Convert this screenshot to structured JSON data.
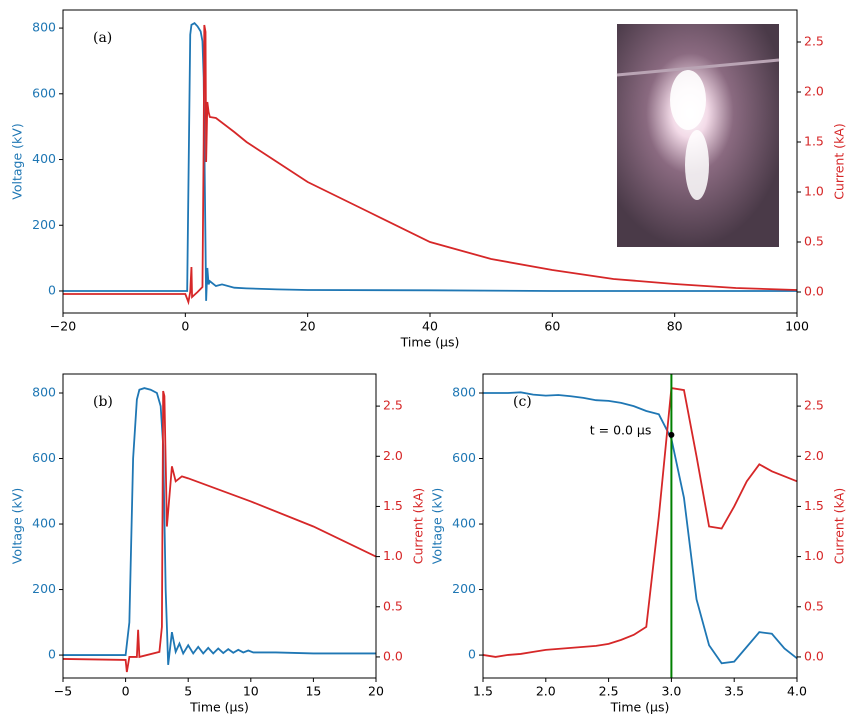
{
  "chart_data": [
    {
      "type": "line",
      "panel_label": "(a)",
      "xlabel": "Time (μs)",
      "ylabel": "Voltage (kV)",
      "y2label": "Current (kA)",
      "xlim": [
        -20,
        100
      ],
      "xticks": [
        {
          "value": -20,
          "label": "−20"
        },
        0,
        20,
        40,
        60,
        80,
        100
      ],
      "ylim": [
        -67,
        855
      ],
      "yticks": [
        0,
        200,
        400,
        600,
        800
      ],
      "y2lim": [
        -0.21,
        2.82
      ],
      "y2ticks": [
        {
          "value": 0,
          "label": "0.0"
        },
        0.5,
        {
          "value": 1,
          "label": "1.0"
        },
        1.5,
        {
          "value": 2,
          "label": "2.0"
        },
        2.5
      ],
      "series": [
        {
          "name": "Voltage",
          "color": "#1f77b4",
          "axis": "y",
          "x": [
            -20,
            0,
            0.3,
            0.8,
            1,
            1.5,
            2,
            2.5,
            2.8,
            3.0,
            3.2,
            3.4,
            3.6,
            3.8,
            4,
            5,
            6,
            8,
            10,
            15,
            20,
            40,
            60,
            100
          ],
          "values": [
            0,
            0,
            0,
            780,
            810,
            815,
            805,
            790,
            760,
            650,
            300,
            -30,
            70,
            20,
            30,
            15,
            20,
            10,
            8,
            5,
            3,
            2,
            0,
            0
          ]
        },
        {
          "name": "Current",
          "color": "#d62728",
          "axis": "y2",
          "x": [
            -20,
            0,
            0.5,
            0.8,
            1.0,
            1.1,
            2,
            2.8,
            3.0,
            3.1,
            3.3,
            3.4,
            3.6,
            3.8,
            4,
            5,
            8,
            10,
            15,
            20,
            30,
            40,
            50,
            60,
            70,
            80,
            90,
            100
          ],
          "values": [
            -0.02,
            -0.02,
            -0.1,
            0.0,
            0.25,
            -0.05,
            0.0,
            0.05,
            1.5,
            2.67,
            2.6,
            1.3,
            1.9,
            1.8,
            1.75,
            1.74,
            1.6,
            1.5,
            1.3,
            1.1,
            0.8,
            0.5,
            0.33,
            0.22,
            0.13,
            0.08,
            0.04,
            0.02
          ]
        }
      ]
    },
    {
      "type": "line",
      "panel_label": "(b)",
      "xlabel": "Time (μs)",
      "ylabel": "Voltage (kV)",
      "y2label": "Current (kA)",
      "xlim": [
        -5,
        20
      ],
      "xticks": [
        {
          "value": -5,
          "label": "−5"
        },
        0,
        5,
        10,
        15,
        20
      ],
      "ylim": [
        -70,
        858
      ],
      "yticks": [
        0,
        200,
        400,
        600,
        800
      ],
      "y2lim": [
        -0.21,
        2.82
      ],
      "y2ticks": [
        {
          "value": 0,
          "label": "0.0"
        },
        0.5,
        {
          "value": 1,
          "label": "1.0"
        },
        1.5,
        {
          "value": 2,
          "label": "2.0"
        },
        2.5
      ],
      "series": [
        {
          "name": "Voltage",
          "color": "#1f77b4",
          "axis": "y",
          "x": [
            -5,
            0,
            0.3,
            0.6,
            0.9,
            1.1,
            1.5,
            2,
            2.5,
            2.8,
            3.0,
            3.2,
            3.4,
            3.7,
            4.0,
            4.3,
            4.6,
            5.0,
            5.4,
            5.8,
            6.2,
            6.6,
            7.0,
            7.4,
            7.8,
            8.2,
            8.6,
            9.0,
            9.4,
            9.8,
            10.2,
            12,
            15,
            20
          ],
          "values": [
            0,
            0,
            100,
            600,
            780,
            810,
            815,
            810,
            800,
            760,
            640,
            200,
            -30,
            70,
            10,
            35,
            5,
            30,
            5,
            25,
            5,
            22,
            5,
            20,
            6,
            18,
            7,
            16,
            8,
            14,
            8,
            8,
            5,
            5
          ]
        },
        {
          "name": "Current",
          "color": "#d62728",
          "axis": "y2",
          "x": [
            -5,
            0,
            0.1,
            0.3,
            0.9,
            1.0,
            1.1,
            2.7,
            2.9,
            3.0,
            3.1,
            3.3,
            3.5,
            3.7,
            4.0,
            4.5,
            5,
            10,
            15,
            20
          ],
          "values": [
            -0.02,
            -0.03,
            -0.15,
            0,
            0,
            0.27,
            0,
            0.05,
            0.3,
            2.65,
            2.6,
            1.3,
            1.6,
            1.9,
            1.75,
            1.8,
            1.78,
            1.55,
            1.3,
            1.0
          ]
        }
      ]
    },
    {
      "type": "line",
      "panel_label": "(c)",
      "xlabel": "Time (μs)",
      "ylabel": "Voltage (kV)",
      "y2label": "Current (kA)",
      "xlim": [
        1.5,
        4.0
      ],
      "xticks": [
        1.5,
        {
          "value": 2,
          "label": "2.0"
        },
        2.5,
        {
          "value": 3,
          "label": "3.0"
        },
        3.5,
        {
          "value": 4,
          "label": "4.0"
        }
      ],
      "ylim": [
        -70,
        858
      ],
      "yticks": [
        0,
        200,
        400,
        600,
        800
      ],
      "y2lim": [
        -0.21,
        2.82
      ],
      "y2ticks": [
        {
          "value": 0,
          "label": "0.0"
        },
        0.5,
        {
          "value": 1,
          "label": "1.0"
        },
        1.5,
        {
          "value": 2,
          "label": "2.0"
        },
        2.5
      ],
      "vline": {
        "x": 3.0,
        "color": "#008000"
      },
      "annotation": {
        "text": "t = 0.0 μs",
        "x": 3.0,
        "y": 672
      },
      "series": [
        {
          "name": "Voltage",
          "color": "#1f77b4",
          "axis": "y",
          "x": [
            1.5,
            1.6,
            1.7,
            1.8,
            1.9,
            2.0,
            2.1,
            2.2,
            2.3,
            2.4,
            2.5,
            2.6,
            2.7,
            2.8,
            2.9,
            3.0,
            3.1,
            3.2,
            3.3,
            3.4,
            3.5,
            3.6,
            3.7,
            3.8,
            3.9,
            4.0
          ],
          "values": [
            800,
            800,
            800,
            802,
            795,
            792,
            794,
            790,
            785,
            778,
            776,
            770,
            760,
            745,
            735,
            660,
            480,
            170,
            30,
            -25,
            -20,
            25,
            70,
            65,
            20,
            -10
          ]
        },
        {
          "name": "Current",
          "color": "#d62728",
          "axis": "y2",
          "x": [
            1.5,
            1.6,
            1.7,
            1.8,
            1.9,
            2.0,
            2.1,
            2.2,
            2.3,
            2.4,
            2.5,
            2.6,
            2.7,
            2.8,
            2.9,
            3.0,
            3.1,
            3.2,
            3.3,
            3.4,
            3.5,
            3.6,
            3.7,
            3.8,
            3.9,
            4.0
          ],
          "values": [
            0.02,
            0,
            0.02,
            0.03,
            0.05,
            0.07,
            0.08,
            0.09,
            0.1,
            0.11,
            0.13,
            0.17,
            0.22,
            0.3,
            1.4,
            2.68,
            2.66,
            2.0,
            1.3,
            1.28,
            1.5,
            1.75,
            1.92,
            1.85,
            1.8,
            1.75
          ]
        }
      ]
    }
  ]
}
